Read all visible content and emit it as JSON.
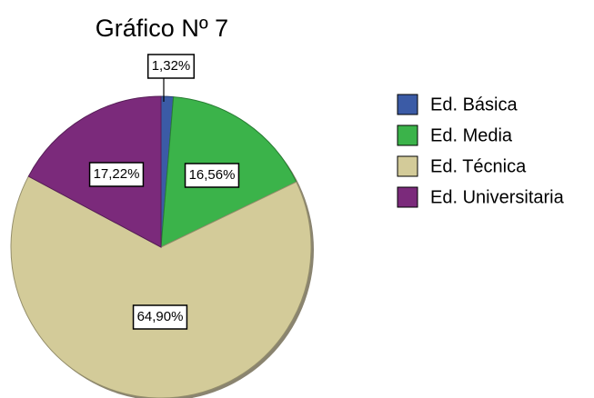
{
  "chart_data": {
    "type": "pie",
    "title": "Gráfico Nº 7",
    "categories": [
      "Ed. Básica",
      "Ed. Media",
      "Ed. Técnica",
      "Ed. Universitaria"
    ],
    "values": [
      1.32,
      16.56,
      64.9,
      17.22
    ],
    "value_labels": [
      "1,32%",
      "16,56%",
      "64,90%",
      "17,22%"
    ],
    "colors": [
      "#3b5ba6",
      "#3bb34a",
      "#d3cb99",
      "#7b2a7b"
    ],
    "legend": "right"
  }
}
